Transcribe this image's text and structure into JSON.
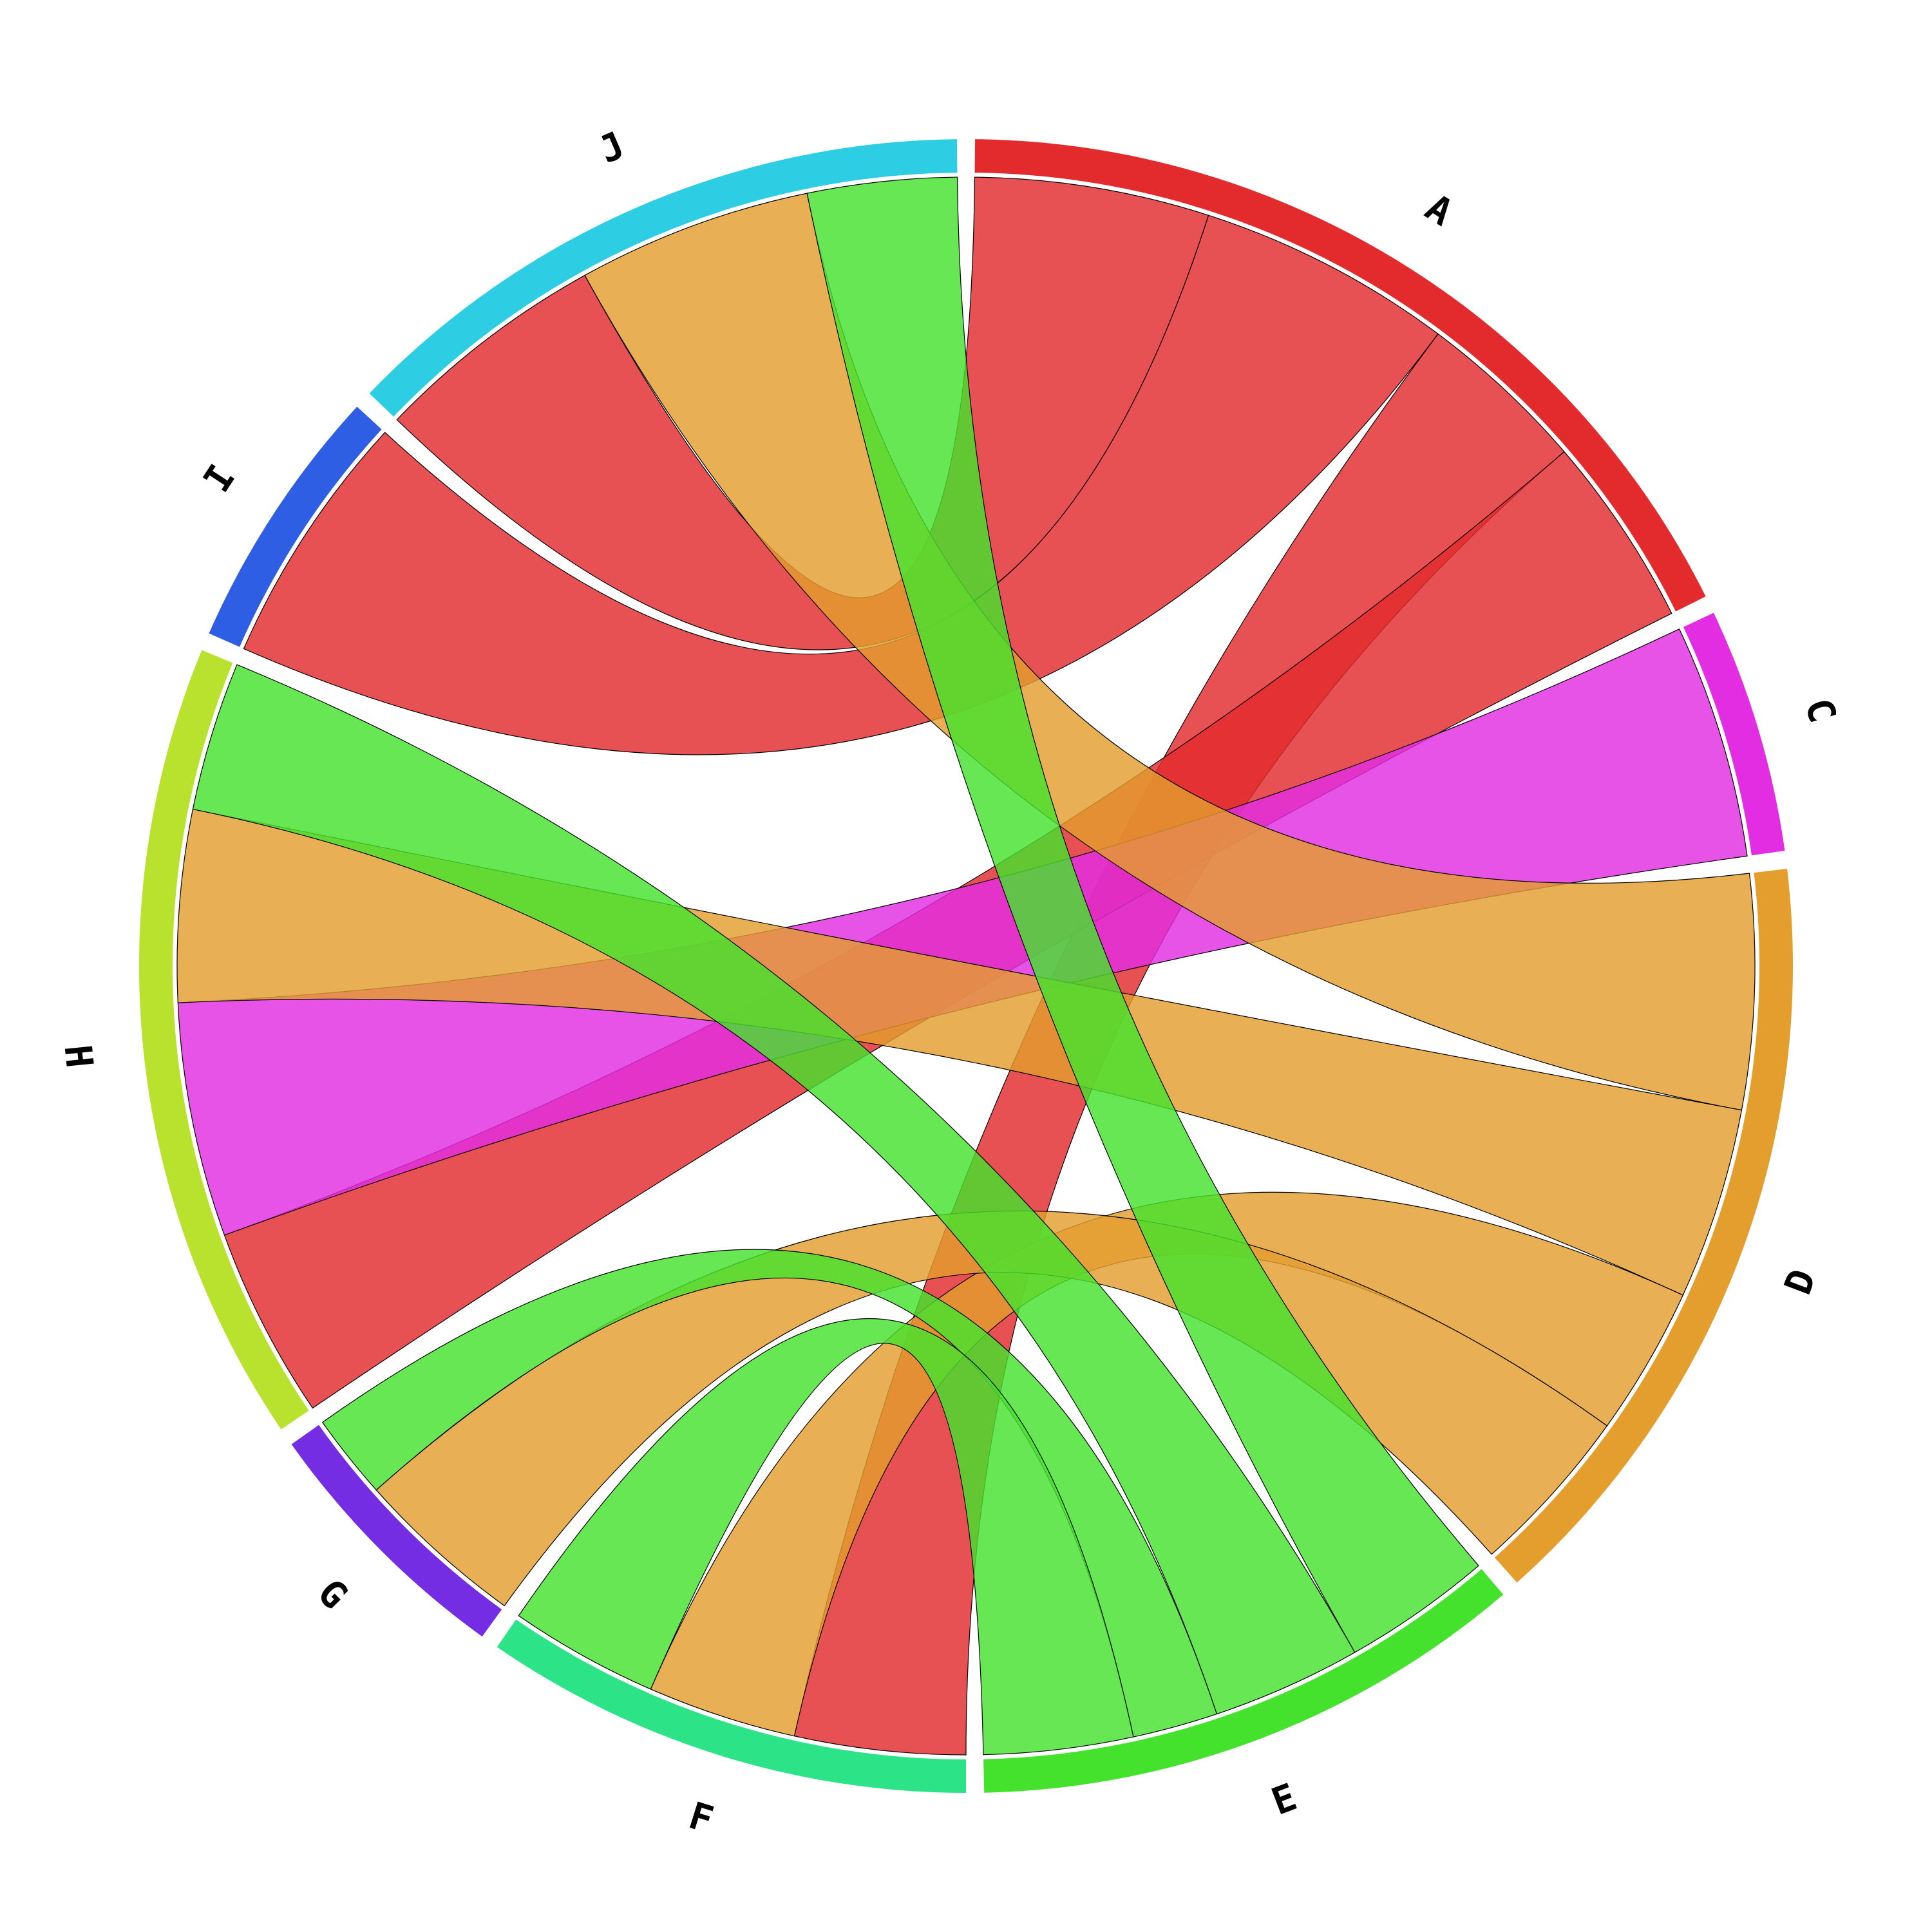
{
  "chart_data": {
    "type": "chord",
    "title": "",
    "nodes": [
      {
        "name": "A",
        "color": "#e32b2d"
      },
      {
        "name": "C",
        "color": "#e22de2"
      },
      {
        "name": "D",
        "color": "#e49e2e"
      },
      {
        "name": "E",
        "color": "#45e22d"
      },
      {
        "name": "F",
        "color": "#2de388"
      },
      {
        "name": "G",
        "color": "#742de3"
      },
      {
        "name": "H",
        "color": "#b8e22d"
      },
      {
        "name": "I",
        "color": "#2d5ee3"
      },
      {
        "name": "J",
        "color": "#2dcde3"
      }
    ],
    "links": [
      {
        "source": "A",
        "target": "J",
        "value": 11
      },
      {
        "source": "A",
        "target": "I",
        "value": 12
      },
      {
        "source": "A",
        "target": "F",
        "value": 8
      },
      {
        "source": "A",
        "target": "H",
        "value": 9
      },
      {
        "source": "C",
        "target": "H",
        "value": 11
      },
      {
        "source": "D",
        "target": "J",
        "value": 11
      },
      {
        "source": "D",
        "target": "H",
        "value": 9
      },
      {
        "source": "D",
        "target": "F",
        "value": 7
      },
      {
        "source": "D",
        "target": "G",
        "value": 8
      },
      {
        "source": "E",
        "target": "J",
        "value": 7
      },
      {
        "source": "E",
        "target": "H",
        "value": 7
      },
      {
        "source": "E",
        "target": "G",
        "value": 4
      },
      {
        "source": "E",
        "target": "F",
        "value": 7
      }
    ]
  }
}
